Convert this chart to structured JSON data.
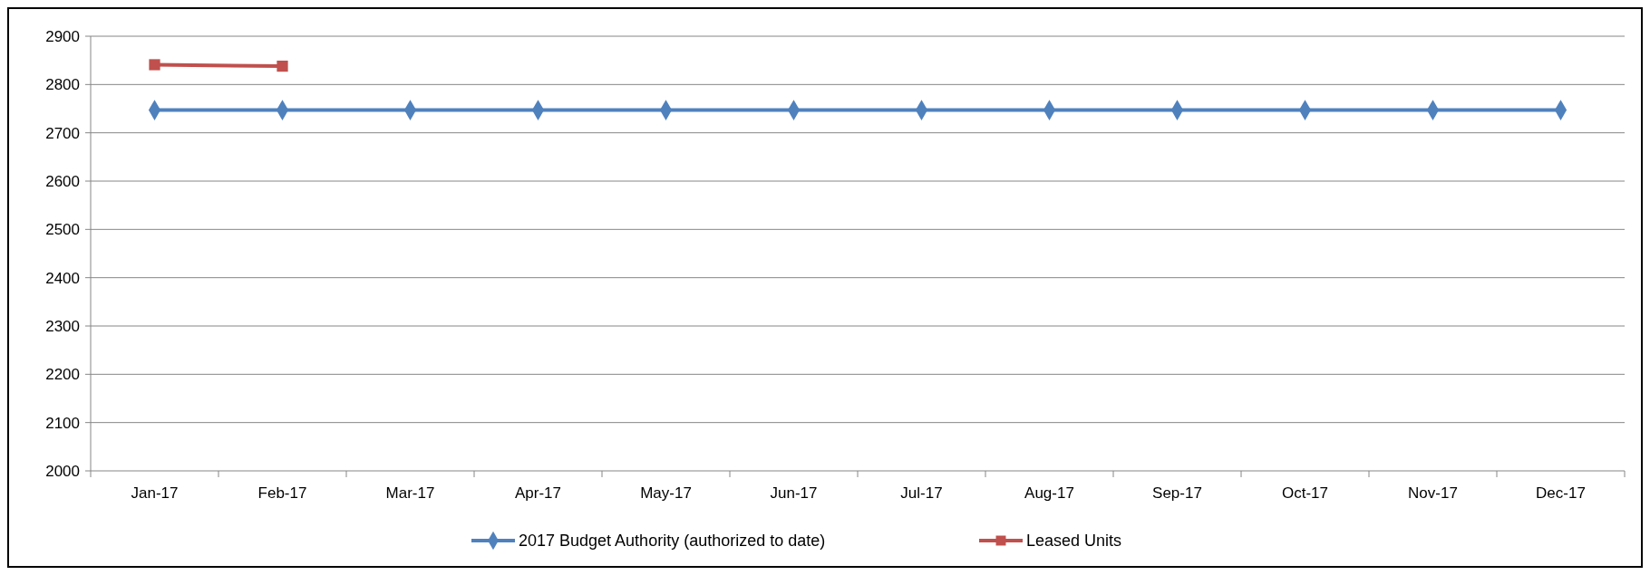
{
  "chart_data": {
    "type": "line",
    "categories": [
      "Jan-17",
      "Feb-17",
      "Mar-17",
      "Apr-17",
      "May-17",
      "Jun-17",
      "Jul-17",
      "Aug-17",
      "Sep-17",
      "Oct-17",
      "Nov-17",
      "Dec-17"
    ],
    "series": [
      {
        "name": "2017 Budget Authority (authorized to date)",
        "color": "#4f81bd",
        "marker": "diamond",
        "values": [
          2747,
          2747,
          2747,
          2747,
          2747,
          2747,
          2747,
          2747,
          2747,
          2747,
          2747,
          2747
        ]
      },
      {
        "name": "Leased Units",
        "color": "#c0504d",
        "marker": "square",
        "values": [
          2841,
          2838,
          null,
          null,
          null,
          null,
          null,
          null,
          null,
          null,
          null,
          null
        ]
      }
    ],
    "ylim": [
      2000,
      2900
    ],
    "yticks": [
      2000,
      2100,
      2200,
      2300,
      2400,
      2500,
      2600,
      2700,
      2800,
      2900
    ],
    "grid": "y",
    "legend": "bottom"
  }
}
